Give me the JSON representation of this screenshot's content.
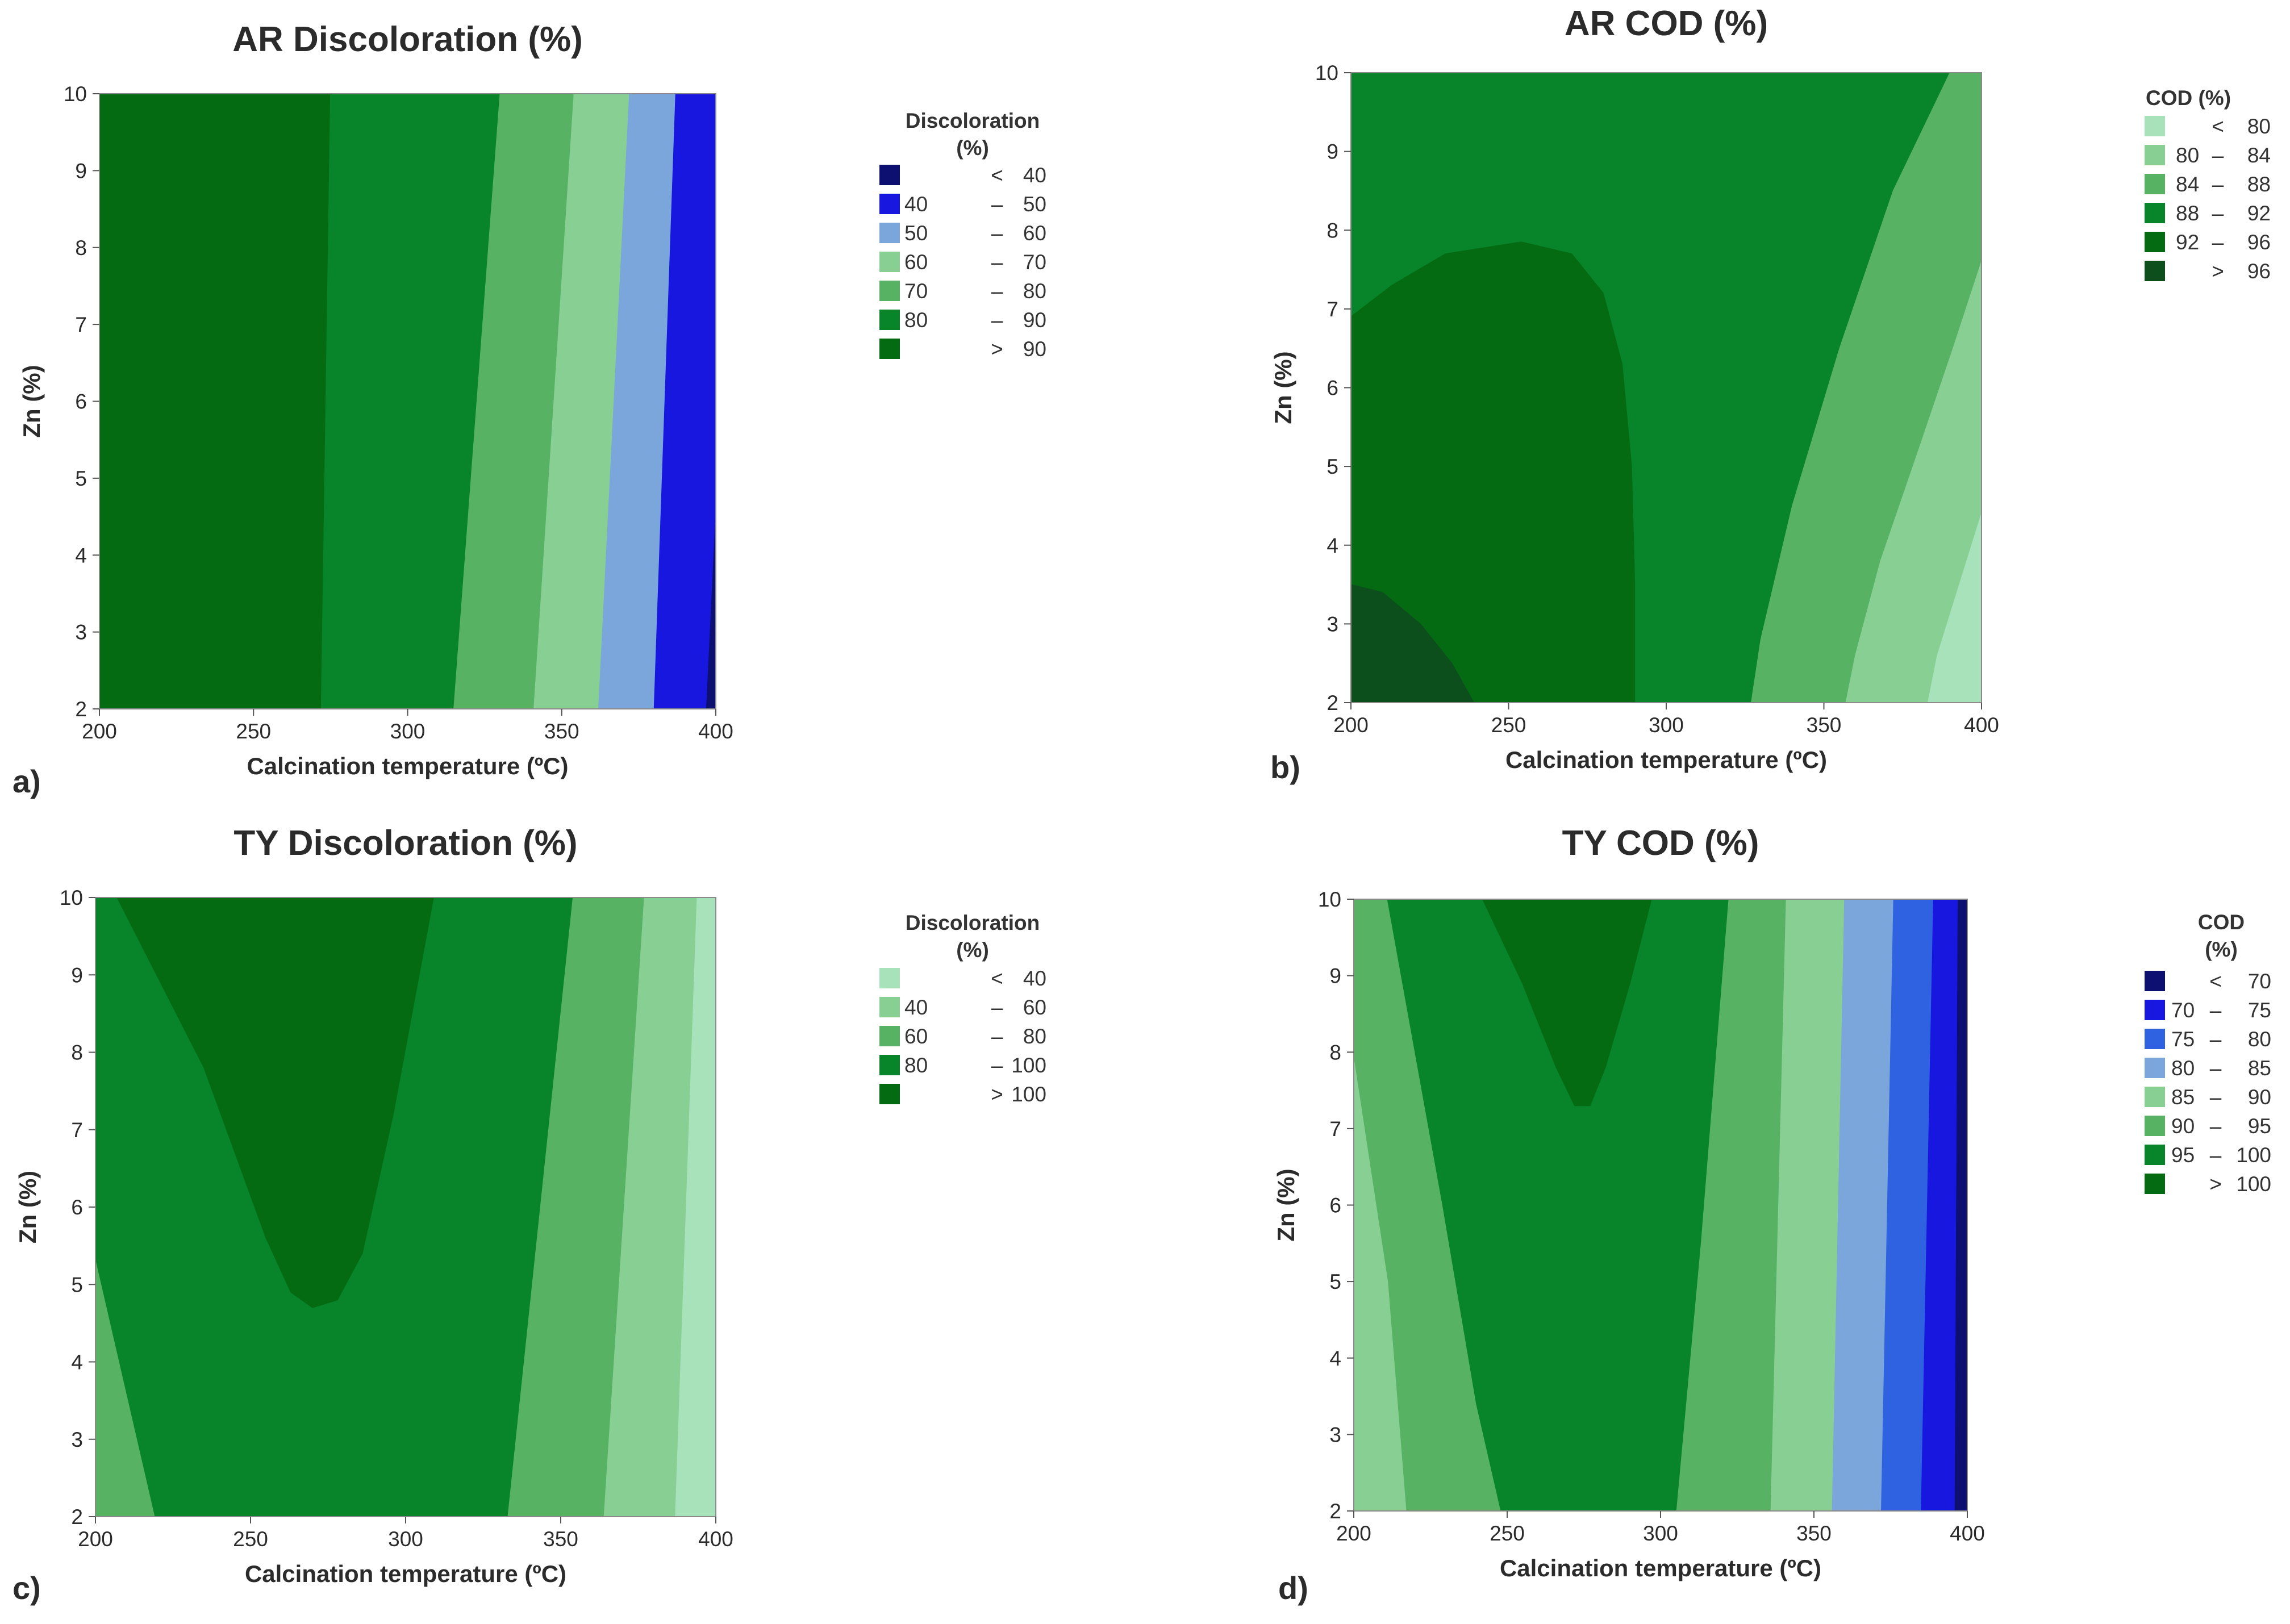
{
  "chart_data": [
    {
      "type": "contour",
      "panel": "a)",
      "title": "AR Discoloration (%)",
      "xlabel": "Calcination temperature (ºC)",
      "ylabel": "Zn (%)",
      "xlim": [
        200,
        400
      ],
      "ylim": [
        2,
        10
      ],
      "xticks": [
        "200",
        "250",
        "300",
        "350",
        "400"
      ],
      "yticks": [
        "2",
        "3",
        "4",
        "5",
        "6",
        "7",
        "8",
        "9",
        "10"
      ],
      "legend": {
        "title": "Discoloration (%)",
        "bins": [
          {
            "lo": "",
            "sep": "<",
            "hi": "40",
            "color": "#0d1070"
          },
          {
            "lo": "40",
            "sep": "–",
            "hi": "50",
            "color": "#1717e0"
          },
          {
            "lo": "50",
            "sep": "–",
            "hi": "60",
            "color": "#7aa6dc"
          },
          {
            "lo": "60",
            "sep": "–",
            "hi": "70",
            "color": "#88cf94"
          },
          {
            "lo": "70",
            "sep": "–",
            "hi": "80",
            "color": "#57b263"
          },
          {
            "lo": "80",
            "sep": "–",
            "hi": "90",
            "color": "#08842a"
          },
          {
            "lo": "",
            "sep": ">",
            "hi": "90",
            "color": "#056b12"
          }
        ]
      },
      "regions": [
        {
          "level": "> 90",
          "color": "#056b12",
          "points": [
            [
              200,
              2
            ],
            [
              272,
              2
            ],
            [
              275,
              10
            ],
            [
              200,
              10
            ]
          ]
        },
        {
          "level": "80 – 90",
          "color": "#08842a",
          "points": [
            [
              272,
              2
            ],
            [
              315,
              2
            ],
            [
              330,
              10
            ],
            [
              275,
              10
            ]
          ]
        },
        {
          "level": "70 – 80",
          "color": "#57b263",
          "points": [
            [
              315,
              2
            ],
            [
              341,
              2
            ],
            [
              354,
              10
            ],
            [
              330,
              10
            ]
          ]
        },
        {
          "level": "60 – 70",
          "color": "#88cf94",
          "points": [
            [
              341,
              2
            ],
            [
              362,
              2
            ],
            [
              372,
              10
            ],
            [
              354,
              10
            ]
          ]
        },
        {
          "level": "50 – 60",
          "color": "#7aa6dc",
          "points": [
            [
              362,
              2
            ],
            [
              380,
              2
            ],
            [
              387,
              10
            ],
            [
              372,
              10
            ]
          ]
        },
        {
          "level": "40 – 50",
          "color": "#1717e0",
          "points": [
            [
              380,
              2
            ],
            [
              397,
              2
            ],
            [
              400,
              4.5
            ],
            [
              400,
              10
            ],
            [
              387,
              10
            ]
          ]
        },
        {
          "level": "< 40",
          "color": "#0d1070",
          "points": [
            [
              397,
              2
            ],
            [
              400,
              2
            ],
            [
              400,
              4.5
            ]
          ]
        }
      ]
    },
    {
      "type": "contour",
      "panel": "b)",
      "title": "AR COD (%)",
      "xlabel": "Calcination temperature (ºC)",
      "ylabel": "Zn (%)",
      "xlim": [
        200,
        400
      ],
      "ylim": [
        2,
        10
      ],
      "xticks": [
        "200",
        "250",
        "300",
        "350",
        "400"
      ],
      "yticks": [
        "2",
        "3",
        "4",
        "5",
        "6",
        "7",
        "8",
        "9",
        "10"
      ],
      "legend": {
        "title": "COD (%)",
        "bins": [
          {
            "lo": "",
            "sep": "<",
            "hi": "80",
            "color": "#a8e2bb"
          },
          {
            "lo": "80",
            "sep": "–",
            "hi": "84",
            "color": "#88cf94"
          },
          {
            "lo": "84",
            "sep": "–",
            "hi": "88",
            "color": "#57b263"
          },
          {
            "lo": "88",
            "sep": "–",
            "hi": "92",
            "color": "#08842a"
          },
          {
            "lo": "92",
            "sep": "–",
            "hi": "96",
            "color": "#056b12"
          },
          {
            "lo": "",
            "sep": ">",
            "hi": "96",
            "color": "#0c4f1c"
          }
        ]
      },
      "regions": [
        {
          "level": "88 – 92",
          "color": "#08842a",
          "points": [
            [
              200,
              2
            ],
            [
              400,
              2
            ],
            [
              400,
              10
            ],
            [
              200,
              10
            ]
          ]
        },
        {
          "level": "84 – 88",
          "color": "#57b263",
          "points": [
            [
              327,
              2
            ],
            [
              400,
              2
            ],
            [
              400,
              10
            ],
            [
              390,
              10
            ],
            [
              372,
              8.5
            ],
            [
              355,
              6.5
            ],
            [
              340,
              4.5
            ],
            [
              330,
              2.8
            ]
          ]
        },
        {
          "level": "80 – 84",
          "color": "#88cf94",
          "points": [
            [
              357,
              2
            ],
            [
              400,
              2
            ],
            [
              400,
              7.6
            ],
            [
              391,
              6.5
            ],
            [
              380,
              5.2
            ],
            [
              368,
              3.8
            ],
            [
              360,
              2.6
            ]
          ]
        },
        {
          "level": "< 80",
          "color": "#a8e2bb",
          "points": [
            [
              383,
              2
            ],
            [
              400,
              2
            ],
            [
              400,
              4.4
            ],
            [
              393,
              3.5
            ],
            [
              386,
              2.6
            ]
          ]
        },
        {
          "level": "92 – 96",
          "color": "#056b12",
          "points": [
            [
              200,
              6.9
            ],
            [
              213,
              7.3
            ],
            [
              230,
              7.7
            ],
            [
              254,
              7.85
            ],
            [
              270,
              7.7
            ],
            [
              280,
              7.2
            ],
            [
              286,
              6.3
            ],
            [
              289,
              5
            ],
            [
              290,
              3.5
            ],
            [
              290,
              2
            ],
            [
              200,
              2
            ]
          ]
        },
        {
          "level": "> 96",
          "color": "#0c4f1c",
          "points": [
            [
              200,
              2
            ],
            [
              239,
              2
            ],
            [
              232,
              2.5
            ],
            [
              222,
              3
            ],
            [
              210,
              3.4
            ],
            [
              200,
              3.5
            ]
          ]
        }
      ]
    },
    {
      "type": "contour",
      "panel": "c)",
      "title": "TY Discoloration (%)",
      "xlabel": "Calcination temperature (ºC)",
      "ylabel": "Zn (%)",
      "xlim": [
        200,
        400
      ],
      "ylim": [
        2,
        10
      ],
      "xticks": [
        "200",
        "250",
        "300",
        "350",
        "400"
      ],
      "yticks": [
        "2",
        "3",
        "4",
        "5",
        "6",
        "7",
        "8",
        "9",
        "10"
      ],
      "legend": {
        "title": "Discoloration (%)",
        "bins": [
          {
            "lo": "",
            "sep": "<",
            "hi": "40",
            "color": "#a8e2bb"
          },
          {
            "lo": "40",
            "sep": "–",
            "hi": "60",
            "color": "#88cf94"
          },
          {
            "lo": "60",
            "sep": "–",
            "hi": "80",
            "color": "#57b263"
          },
          {
            "lo": "80",
            "sep": "–",
            "hi": "100",
            "color": "#08842a"
          },
          {
            "lo": "",
            "sep": ">",
            "hi": "100",
            "color": "#056b12"
          }
        ]
      },
      "regions": [
        {
          "level": "80 – 100",
          "color": "#08842a",
          "points": [
            [
              200,
              2
            ],
            [
              400,
              2
            ],
            [
              400,
              10
            ],
            [
              200,
              10
            ]
          ]
        },
        {
          "level": "60 – 80",
          "color": "#57b263",
          "points": [
            [
              200,
              2
            ],
            [
              219,
              2
            ],
            [
              200,
              5.3
            ]
          ]
        },
        {
          "level": "60 – 80",
          "color": "#57b263",
          "points": [
            [
              333,
              2
            ],
            [
              400,
              2
            ],
            [
              400,
              10
            ],
            [
              354,
              10
            ]
          ]
        },
        {
          "level": "40 – 60",
          "color": "#88cf94",
          "points": [
            [
              364,
              2
            ],
            [
              400,
              2
            ],
            [
              400,
              10
            ],
            [
              377,
              10
            ]
          ]
        },
        {
          "level": "< 40",
          "color": "#a8e2bb",
          "points": [
            [
              387,
              2
            ],
            [
              400,
              2
            ],
            [
              400,
              10
            ],
            [
              394,
              10
            ]
          ]
        },
        {
          "level": "> 100",
          "color": "#056b12",
          "points": [
            [
              207,
              10
            ],
            [
              235,
              7.8
            ],
            [
              255,
              5.6
            ],
            [
              263,
              4.9
            ],
            [
              270,
              4.7
            ],
            [
              278,
              4.8
            ],
            [
              286,
              5.4
            ],
            [
              296,
              7.2
            ],
            [
              309,
              10
            ]
          ]
        }
      ]
    },
    {
      "type": "contour",
      "panel": "d)",
      "title": "TY COD (%)",
      "xlabel": "Calcination temperature (ºC)",
      "ylabel": "Zn (%)",
      "xlim": [
        200,
        400
      ],
      "ylim": [
        2,
        10
      ],
      "xticks": [
        "200",
        "250",
        "300",
        "350",
        "400"
      ],
      "yticks": [
        "2",
        "3",
        "4",
        "5",
        "6",
        "7",
        "8",
        "9",
        "10"
      ],
      "legend": {
        "title": "COD (%)",
        "bins": [
          {
            "lo": "",
            "sep": "<",
            "hi": "70",
            "color": "#0d1070"
          },
          {
            "lo": "70",
            "sep": "–",
            "hi": "75",
            "color": "#1717e0"
          },
          {
            "lo": "75",
            "sep": "–",
            "hi": "80",
            "color": "#2f62e0"
          },
          {
            "lo": "80",
            "sep": "–",
            "hi": "85",
            "color": "#7aa6dc"
          },
          {
            "lo": "85",
            "sep": "–",
            "hi": "90",
            "color": "#88cf94"
          },
          {
            "lo": "90",
            "sep": "–",
            "hi": "95",
            "color": "#57b263"
          },
          {
            "lo": "95",
            "sep": "–",
            "hi": "100",
            "color": "#08842a"
          },
          {
            "lo": "",
            "sep": ">",
            "hi": "100",
            "color": "#056b12"
          }
        ]
      },
      "regions": [
        {
          "level": "90 – 95",
          "color": "#57b263",
          "points": [
            [
              200,
              2
            ],
            [
              400,
              2
            ],
            [
              400,
              10
            ],
            [
              200,
              10
            ]
          ]
        },
        {
          "level": "85 – 90",
          "color": "#88cf94",
          "points": [
            [
              200,
              2
            ],
            [
              217,
              2
            ],
            [
              211,
              5
            ],
            [
              200,
              7.9
            ]
          ]
        },
        {
          "level": "95 – 100",
          "color": "#08842a",
          "points": [
            [
              211,
              10
            ],
            [
              229,
              6
            ],
            [
              240,
              3.4
            ],
            [
              248,
              2
            ],
            [
              305,
              2
            ],
            [
              313,
              5.5
            ],
            [
              322,
              10
            ]
          ]
        },
        {
          "level": "85 – 90",
          "color": "#88cf94",
          "points": [
            [
              336,
              2
            ],
            [
              400,
              2
            ],
            [
              400,
              10
            ],
            [
              341,
              10
            ]
          ]
        },
        {
          "level": "80 – 85",
          "color": "#7aa6dc",
          "points": [
            [
              356,
              2
            ],
            [
              400,
              2
            ],
            [
              400,
              10
            ],
            [
              360,
              10
            ]
          ]
        },
        {
          "level": "75 – 80",
          "color": "#2f62e0",
          "points": [
            [
              372,
              2
            ],
            [
              400,
              2
            ],
            [
              400,
              10
            ],
            [
              376,
              10
            ]
          ]
        },
        {
          "level": "70 – 75",
          "color": "#1717e0",
          "points": [
            [
              385,
              2
            ],
            [
              400,
              2
            ],
            [
              400,
              10
            ],
            [
              389,
              10
            ]
          ]
        },
        {
          "level": "< 70",
          "color": "#0d1070",
          "points": [
            [
              396,
              2
            ],
            [
              400,
              2
            ],
            [
              400,
              10
            ],
            [
              397,
              10
            ]
          ]
        },
        {
          "level": "> 100",
          "color": "#056b12",
          "points": [
            [
              242,
              10
            ],
            [
              255,
              8.9
            ],
            [
              266,
              7.8
            ],
            [
              272,
              7.3
            ],
            [
              277,
              7.3
            ],
            [
              282,
              7.8
            ],
            [
              290,
              8.9
            ],
            [
              297,
              10
            ]
          ]
        }
      ]
    }
  ]
}
